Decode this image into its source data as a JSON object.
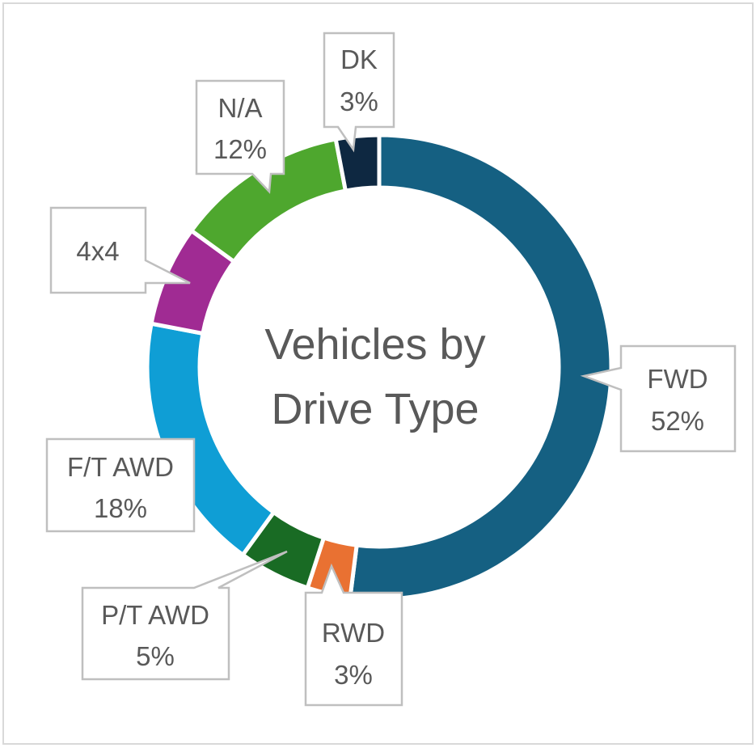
{
  "chart_data": {
    "type": "pie",
    "subtype": "donut",
    "title": [
      "Vehicles by",
      "Drive Type"
    ],
    "categories": [
      "FWD",
      "RWD",
      "P/T AWD",
      "F/T AWD",
      "4x4",
      "N/A",
      "DK"
    ],
    "values": [
      52,
      3,
      5,
      18,
      7,
      12,
      3
    ],
    "labels": [
      {
        "name": "FWD",
        "pct": "52%"
      },
      {
        "name": "RWD",
        "pct": "3%"
      },
      {
        "name": "P/T AWD",
        "pct": "5%"
      },
      {
        "name": "F/T AWD",
        "pct": "18%"
      },
      {
        "name": "4x4",
        "pct": null
      },
      {
        "name": "N/A",
        "pct": "12%"
      },
      {
        "name": "DK",
        "pct": "3%"
      }
    ],
    "colors": [
      "#156082",
      "#e97132",
      "#196b24",
      "#0f9ed5",
      "#a02b93",
      "#4ea72e",
      "#0e2841"
    ],
    "legend": "none"
  }
}
